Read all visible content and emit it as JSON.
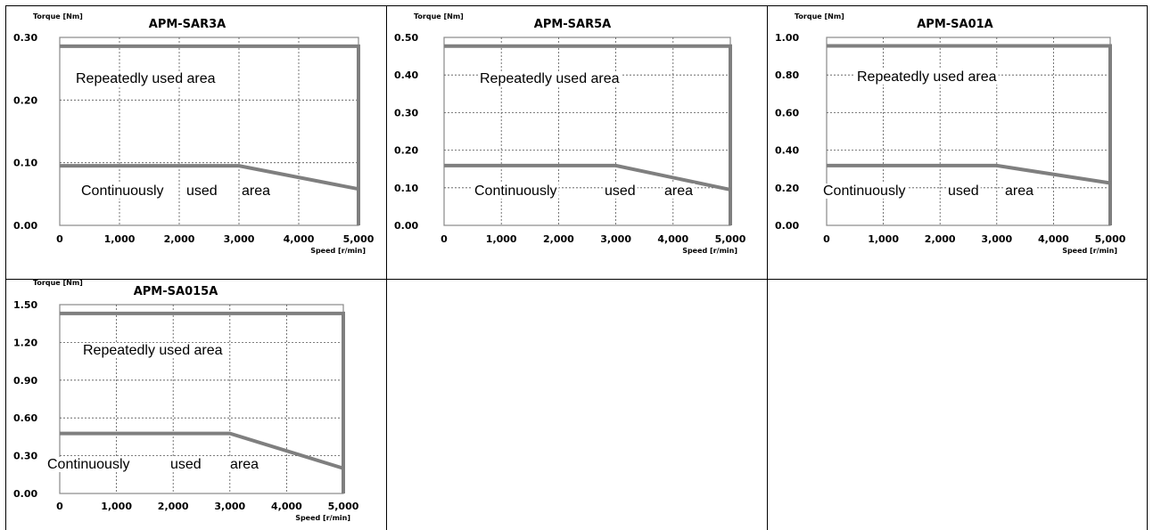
{
  "chart_data": [
    {
      "type": "line",
      "title": "APM-SAR3A",
      "ylabel": "Torque [Nm]",
      "xlabel": "Speed [r/min]",
      "y_tick_labels": [
        "0.00",
        "0.10",
        "0.20",
        "0.30"
      ],
      "x_tick_labels": [
        "0",
        "1,000",
        "2,000",
        "3,000",
        "4,000",
        "5,000"
      ],
      "xlim": [
        0,
        5000
      ],
      "ylim": [
        0,
        0.3
      ],
      "grid": true,
      "series": [
        {
          "name": "Repeatedly used area",
          "x": [
            0,
            5000,
            5000
          ],
          "y": [
            0.286,
            0.286,
            0
          ]
        },
        {
          "name": "Continuously used area",
          "x": [
            0,
            3000,
            5000
          ],
          "y": [
            0.095,
            0.095,
            0.058
          ]
        }
      ],
      "annotations": [
        "Repeatedly used area",
        "Continuously",
        "used",
        "area"
      ]
    },
    {
      "type": "line",
      "title": "APM-SAR5A",
      "ylabel": "Torque [Nm]",
      "xlabel": "Speed [r/min]",
      "y_tick_labels": [
        "0.00",
        "0.10",
        "0.20",
        "0.30",
        "0.40",
        "0.50"
      ],
      "x_tick_labels": [
        "0",
        "1,000",
        "2,000",
        "3,000",
        "4,000",
        "5,000"
      ],
      "xlim": [
        0,
        5000
      ],
      "ylim": [
        0,
        0.5
      ],
      "grid": true,
      "series": [
        {
          "name": "Repeatedly used area",
          "x": [
            0,
            5000,
            5000
          ],
          "y": [
            0.477,
            0.477,
            0
          ]
        },
        {
          "name": "Continuously used area",
          "x": [
            0,
            3000,
            5000
          ],
          "y": [
            0.159,
            0.159,
            0.095
          ]
        }
      ],
      "annotations": [
        "Repeatedly used area",
        "Continuously",
        "used",
        "area"
      ]
    },
    {
      "type": "line",
      "title": "APM-SA01A",
      "ylabel": "Torque [Nm]",
      "xlabel": "Speed [r/min]",
      "y_tick_labels": [
        "0.00",
        "0.20",
        "0.40",
        "0.60",
        "0.80",
        "1.00"
      ],
      "x_tick_labels": [
        "0",
        "1,000",
        "2,000",
        "3,000",
        "4,000",
        "5,000"
      ],
      "xlim": [
        0,
        5000
      ],
      "ylim": [
        0,
        1.0
      ],
      "grid": true,
      "series": [
        {
          "name": "Repeatedly used area",
          "x": [
            0,
            5000,
            5000
          ],
          "y": [
            0.955,
            0.955,
            0
          ]
        },
        {
          "name": "Continuously used area",
          "x": [
            0,
            3000,
            5000
          ],
          "y": [
            0.318,
            0.318,
            0.225
          ]
        }
      ],
      "annotations": [
        "Repeatedly used area",
        "Continuously",
        "used",
        "area"
      ]
    },
    {
      "type": "line",
      "title": "APM-SA015A",
      "ylabel": "Torque [Nm]",
      "xlabel": "Speed [r/min]",
      "y_tick_labels": [
        "0.00",
        "0.30",
        "0.60",
        "0.90",
        "1.20",
        "1.50"
      ],
      "x_tick_labels": [
        "0",
        "1,000",
        "2,000",
        "3,000",
        "4,000",
        "5,000"
      ],
      "xlim": [
        0,
        5000
      ],
      "ylim": [
        0,
        1.5
      ],
      "grid": true,
      "series": [
        {
          "name": "Repeatedly used area",
          "x": [
            0,
            5000,
            5000
          ],
          "y": [
            1.43,
            1.43,
            0
          ]
        },
        {
          "name": "Continuously used area",
          "x": [
            0,
            3000,
            5000
          ],
          "y": [
            0.477,
            0.477,
            0.2
          ]
        }
      ],
      "annotations": [
        "Repeatedly used area",
        "Continuously",
        "used",
        "area"
      ]
    }
  ],
  "colors": {
    "curve": "#7f7f7f",
    "grid": "#555555",
    "border": "#000000"
  }
}
